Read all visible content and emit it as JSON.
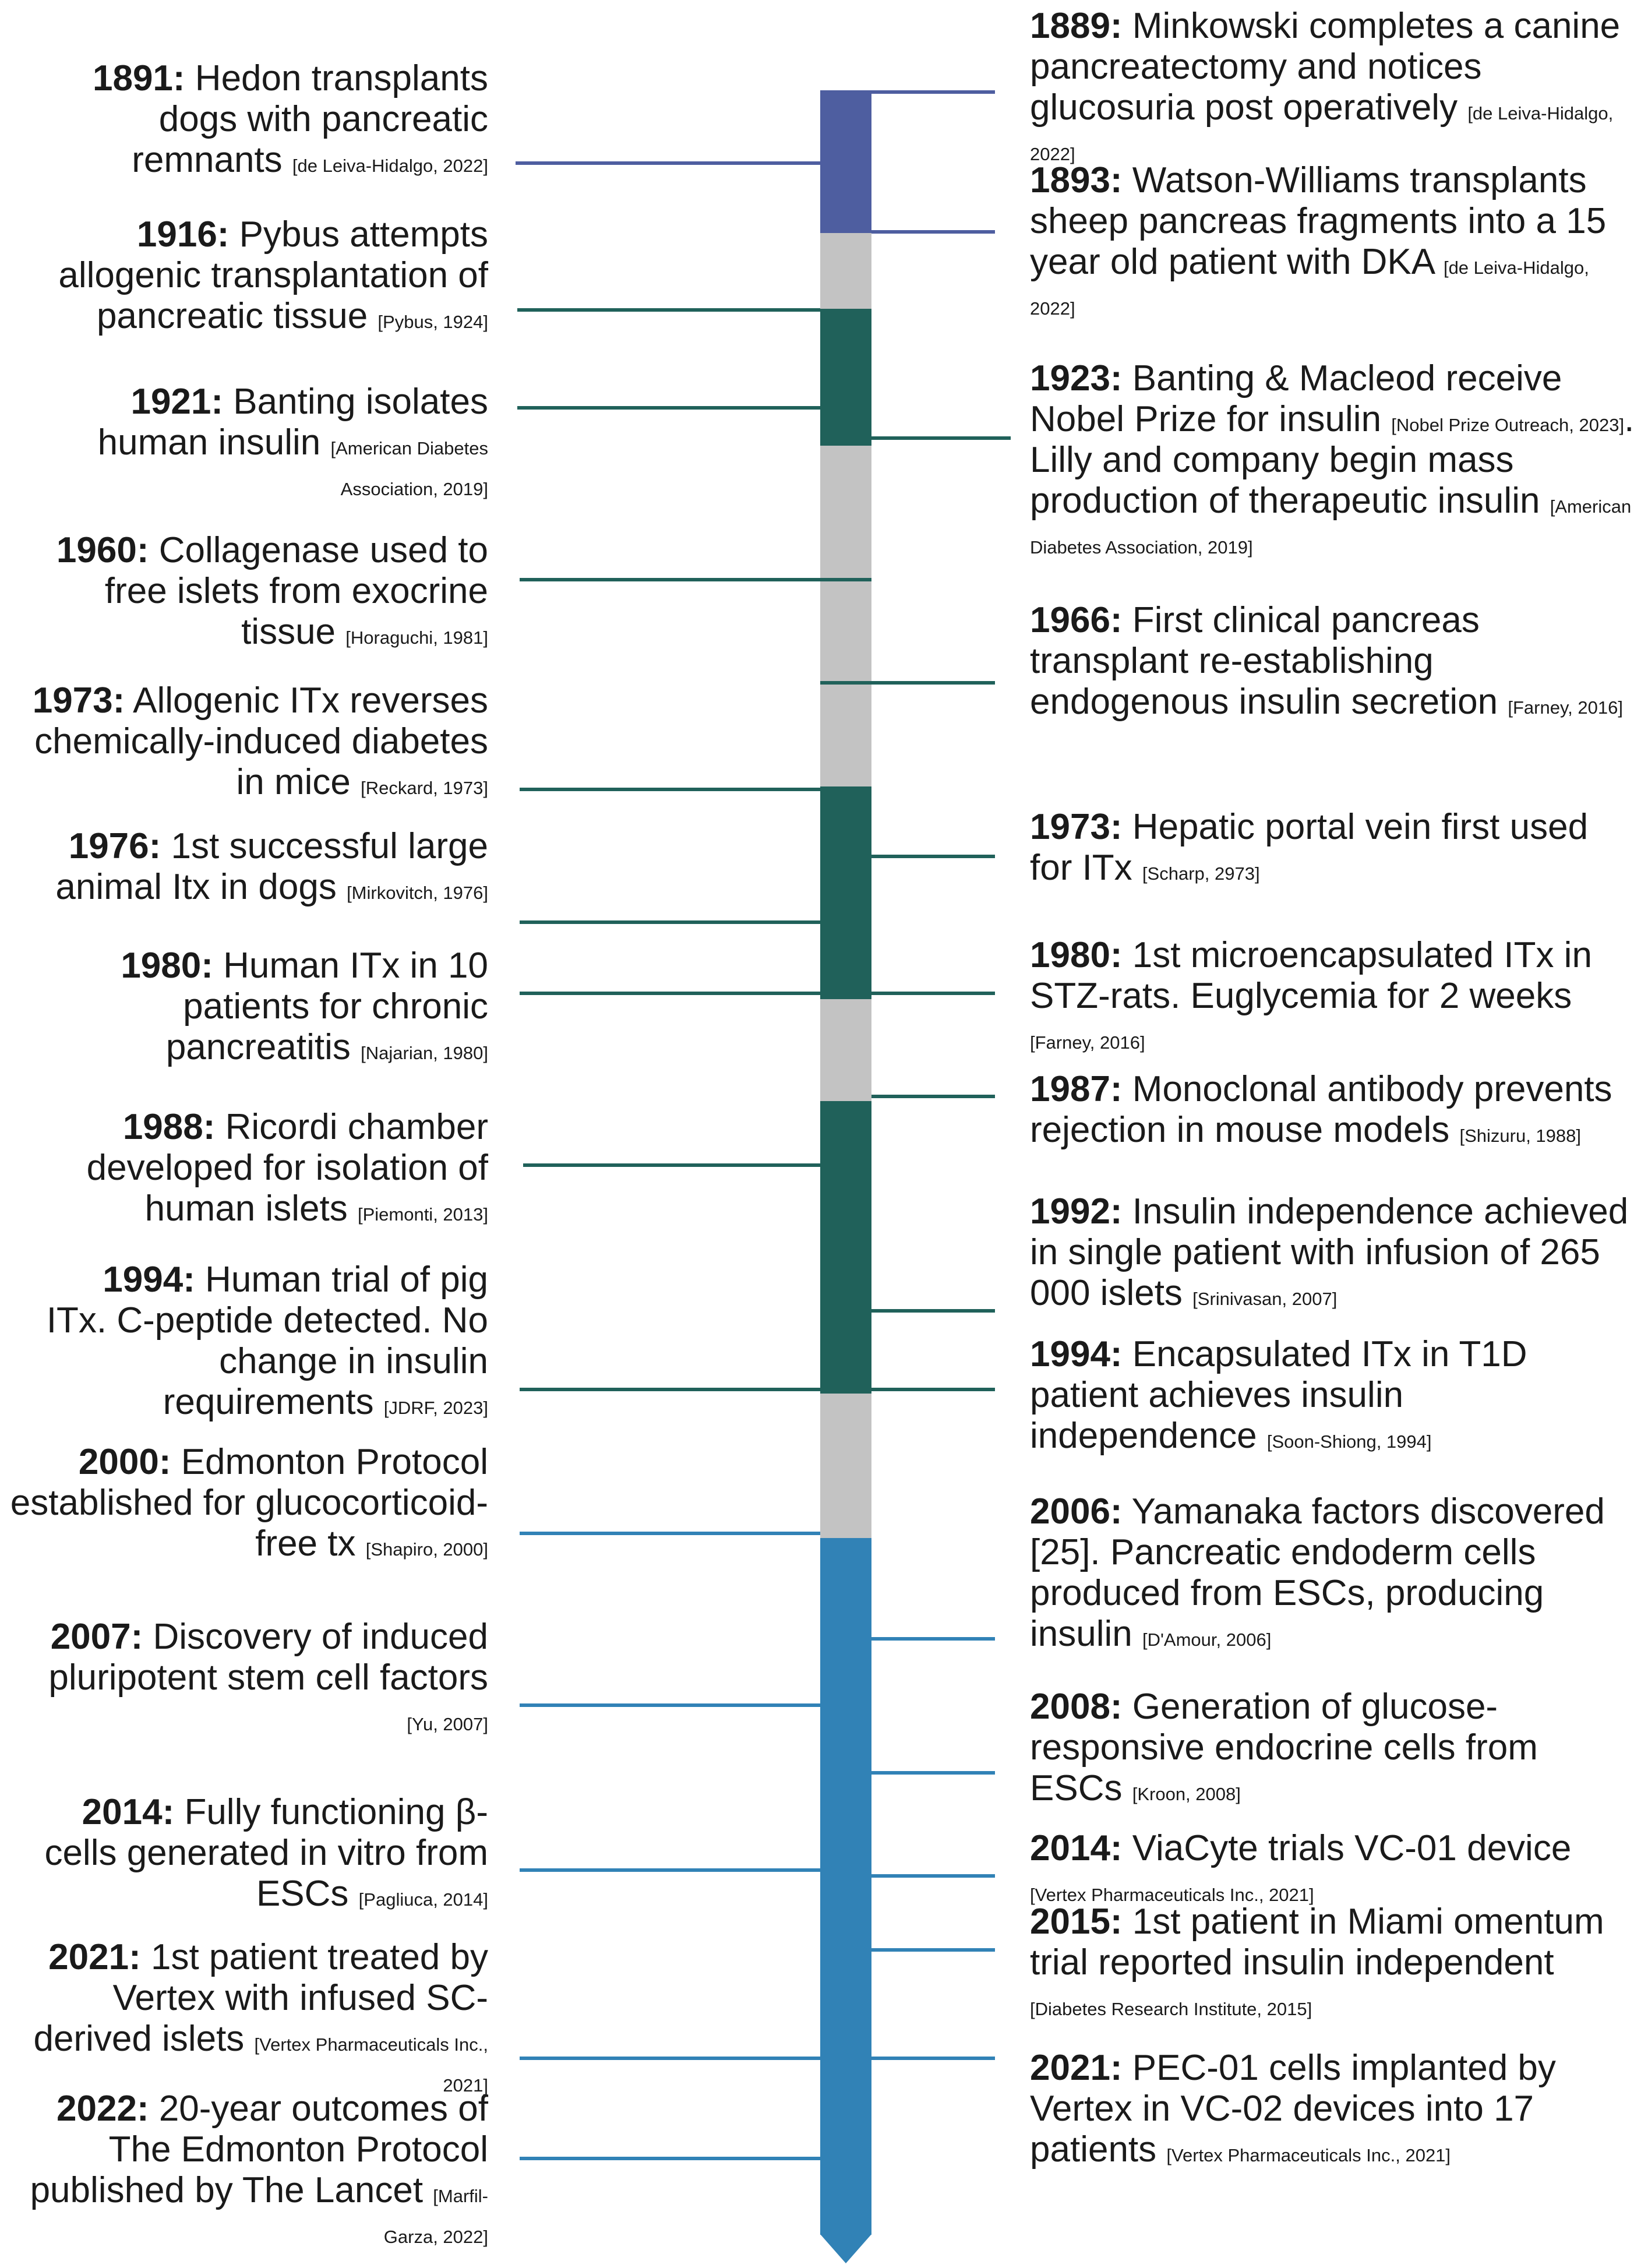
{
  "colors": {
    "purple": "#4E5EA0",
    "dark_green": "#20615A",
    "gray": "#C3C3C3",
    "blue": "#3182B6",
    "text": "#1a1a1a"
  },
  "timeline": {
    "segments": [
      {
        "color": "purple"
      },
      {
        "color": "gray"
      },
      {
        "color": "dark_green"
      },
      {
        "color": "gray"
      },
      {
        "color": "dark_green"
      },
      {
        "color": "gray"
      },
      {
        "color": "dark_green"
      },
      {
        "color": "gray"
      },
      {
        "color": "blue"
      }
    ]
  },
  "events": [
    {
      "side": "left",
      "year": "1891:",
      "text": " Hedon transplants dogs with pancreatic remnants",
      "cite": "[de Leiva-Hidalgo, 2022]",
      "color": "purple"
    },
    {
      "side": "left",
      "year": "1916:",
      "text": " Pybus attempts allogenic transplantation of pancreatic tissue",
      "cite": "[Pybus, 1924]",
      "color": "dark_green"
    },
    {
      "side": "left",
      "year": "1921:",
      "text": " Banting isolates human insulin",
      "cite": "[American Diabetes Association, 2019]",
      "color": "dark_green"
    },
    {
      "side": "left",
      "year": "1960:",
      "text": " Collagenase used to free islets from exocrine tissue",
      "cite": "[Horaguchi, 1981]",
      "color": "dark_green"
    },
    {
      "side": "left",
      "year": "1973:",
      "text": " Allogenic ITx reverses chemically-induced diabetes in mice",
      "cite": "[Reckard, 1973]",
      "color": "dark_green"
    },
    {
      "side": "left",
      "year": "1976:",
      "text": " 1st successful large animal Itx in dogs",
      "cite": "[Mirkovitch, 1976]",
      "color": "dark_green"
    },
    {
      "side": "left",
      "year": "1980:",
      "text": " Human ITx in 10 patients for chronic pancreatitis",
      "cite": "[Najarian, 1980]",
      "color": "dark_green"
    },
    {
      "side": "left",
      "year": "1988:",
      "text": " Ricordi chamber developed for isolation of human islets",
      "cite": "[Piemonti, 2013]",
      "color": "dark_green"
    },
    {
      "side": "left",
      "year": "1994:",
      "text": " Human trial of pig ITx. C-peptide detected. No change in insulin requirements",
      "cite": "[JDRF, 2023]",
      "color": "dark_green"
    },
    {
      "side": "left",
      "year": "2000:",
      "text": " Edmonton Protocol established for glucocorticoid-free tx",
      "cite": "[Shapiro, 2000]",
      "color": "blue"
    },
    {
      "side": "left",
      "year": "2007:",
      "text": " Discovery of induced pluripotent stem cell factors",
      "cite": "[Yu, 2007]",
      "color": "blue"
    },
    {
      "side": "left",
      "year": "2014:",
      "text": " Fully functioning β-cells generated in vitro from ESCs",
      "cite": "[Pagliuca, 2014]",
      "color": "blue"
    },
    {
      "side": "left",
      "year": "2021:",
      "text": " 1st patient  treated by Vertex with infused SC-derived islets",
      "cite": "[Vertex Pharmaceuticals Inc., 2021]",
      "color": "blue"
    },
    {
      "side": "left",
      "year": "2022:",
      "text": " 20-year outcomes of The Edmonton Protocol published by The Lancet",
      "cite": "[Marfil-Garza, 2022]",
      "color": "blue"
    },
    {
      "side": "right",
      "year": "1889:",
      "text": " Minkowski completes a canine pancreatectomy and notices glucosuria post operatively",
      "cite": "[de Leiva-Hidalgo, 2022]",
      "color": "purple"
    },
    {
      "side": "right",
      "year": "1893:",
      "text": " Watson-Williams transplants sheep pancreas fragments into a 15 year old patient with DKA",
      "cite": "[de Leiva-Hidalgo, 2022]",
      "color": "purple"
    },
    {
      "side": "right",
      "year": "1923:",
      "text": " Banting & Macleod receive Nobel Prize for insulin",
      "cite": "[Nobel Prize Outreach, 2023]",
      "text2": ". Lilly and company begin mass production of therapeutic insulin",
      "cite2": "[American Diabetes Association, 2019]",
      "color": "dark_green"
    },
    {
      "side": "right",
      "year": "1966:",
      "text": " First clinical pancreas transplant re-establishing endogenous insulin secretion",
      "cite": "[Farney, 2016]",
      "color": "dark_green"
    },
    {
      "side": "right",
      "year": "1973:",
      "text": " Hepatic portal vein first used for ITx",
      "cite": "[Scharp, 2973]",
      "color": "dark_green"
    },
    {
      "side": "right",
      "year": "1980:",
      "text": " 1st microencapsulated ITx in STZ-rats. Euglycemia for 2 weeks",
      "cite": "[Farney, 2016]",
      "color": "dark_green"
    },
    {
      "side": "right",
      "year": "1987:",
      "text": " Monoclonal antibody prevents rejection in mouse models",
      "cite": "[Shizuru, 1988]",
      "color": "dark_green"
    },
    {
      "side": "right",
      "year": "1992:",
      "text": " Insulin independence achieved in single patient with infusion of 265 000 islets",
      "cite": "[Srinivasan, 2007]",
      "color": "dark_green"
    },
    {
      "side": "right",
      "year": "1994:",
      "text": " Encapsulated ITx in T1D patient achieves insulin independence",
      "cite": "[Soon-Shiong, 1994]",
      "color": "dark_green"
    },
    {
      "side": "right",
      "year": "2006:",
      "text": " Yamanaka factors discovered [25]. Pancreatic endoderm cells produced from ESCs, producing insulin",
      "cite": "[D'Amour, 2006]",
      "color": "blue"
    },
    {
      "side": "right",
      "year": "2008:",
      "text": " Generation of glucose-responsive endocrine cells from ESCs",
      "cite": "[Kroon, 2008]",
      "color": "blue"
    },
    {
      "side": "right",
      "year": "2014:",
      "text": " ViaCyte trials VC-01 device",
      "cite": "[Vertex Pharmaceuticals Inc., 2021]",
      "color": "blue"
    },
    {
      "side": "right",
      "year": "2015:",
      "text": " 1st patient in Miami omentum trial reported insulin independent",
      "cite": "[Diabetes Research Institute, 2015]",
      "color": "blue"
    },
    {
      "side": "right",
      "year": "2021:",
      "text": " PEC-01 cells implanted by Vertex in VC-02 devices into 17 patients",
      "cite": "[Vertex Pharmaceuticals Inc., 2021]",
      "color": "blue"
    }
  ]
}
